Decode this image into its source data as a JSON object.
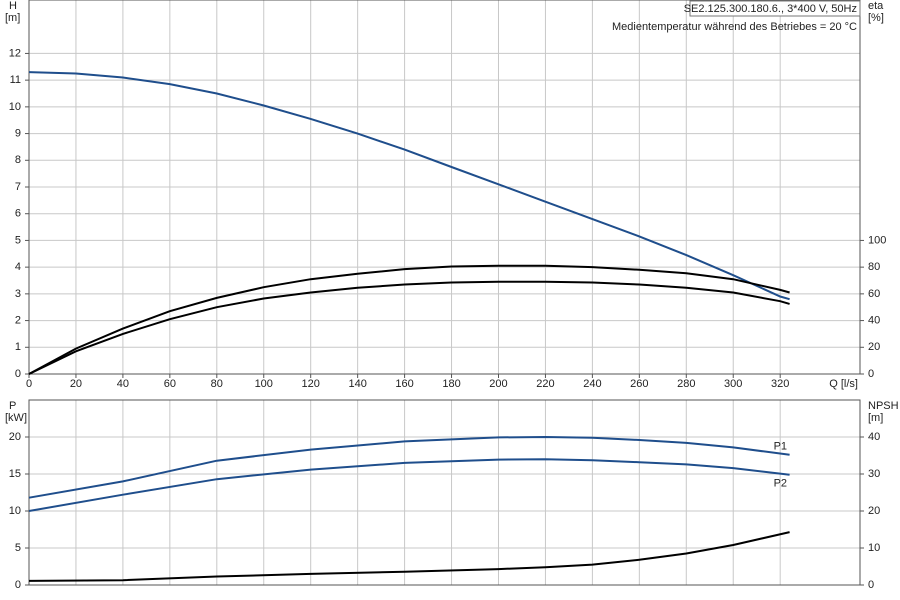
{
  "chart_data": [
    {
      "type": "line",
      "info": [
        "SE2.125.300.180.6., 3*400 V, 50Hz",
        "Medientemperatur während des Betriebes = 20 °C"
      ],
      "y_label": "H",
      "y_unit": "[m]",
      "y2_label": "eta",
      "y2_unit": "[%]",
      "x_label": "Q [l/s]",
      "x": [
        0,
        20,
        40,
        60,
        80,
        100,
        120,
        140,
        160,
        180,
        200,
        220,
        240,
        260,
        280,
        300,
        320,
        324
      ],
      "xlim": [
        0,
        354
      ],
      "xticks": [
        0,
        20,
        40,
        60,
        80,
        100,
        120,
        140,
        160,
        180,
        200,
        220,
        240,
        260,
        280,
        300,
        320
      ],
      "ylim": [
        0,
        14
      ],
      "yticks": [
        0,
        1,
        2,
        3,
        4,
        5,
        6,
        7,
        8,
        9,
        10,
        11,
        12
      ],
      "y2lim": [
        0,
        280
      ],
      "y2ticks": [
        0,
        20,
        40,
        60,
        80,
        100
      ],
      "grid": true,
      "series": [
        {
          "color": "#1f4e8c",
          "values": [
            11.3,
            11.25,
            11.1,
            10.85,
            10.5,
            10.05,
            9.55,
            9.0,
            8.4,
            7.75,
            7.1,
            6.45,
            5.8,
            5.15,
            4.45,
            3.7,
            2.9,
            2.8
          ]
        },
        {
          "color": "#000000",
          "axis": "y2",
          "values": [
            0,
            19,
            34,
            47,
            57,
            65,
            71,
            75,
            78.5,
            80.5,
            81,
            81,
            80,
            78,
            75.5,
            71,
            63,
            61
          ]
        },
        {
          "color": "#000000",
          "axis": "y2",
          "values": [
            0,
            17,
            30,
            41,
            50,
            56.5,
            61,
            64.5,
            67,
            68.5,
            69,
            69,
            68.5,
            67,
            64.5,
            61,
            54.5,
            52.5
          ]
        }
      ]
    },
    {
      "type": "line",
      "y_label": "P",
      "y_unit": "[kW]",
      "y2_label": "NPSH",
      "y2_unit": "[m]",
      "x": [
        0,
        40,
        80,
        120,
        160,
        200,
        220,
        240,
        260,
        280,
        300,
        324
      ],
      "xlim": [
        0,
        354
      ],
      "ylim": [
        0,
        25
      ],
      "yticks": [
        0,
        5,
        10,
        15,
        20
      ],
      "y2lim": [
        0,
        50
      ],
      "y2ticks": [
        0,
        10,
        20,
        30,
        40
      ],
      "grid": true,
      "series": [
        {
          "name": "P1",
          "color": "#1f4e8c",
          "values": [
            11.8,
            14.0,
            16.8,
            18.3,
            19.4,
            19.95,
            20,
            19.9,
            19.6,
            19.2,
            18.6,
            17.6
          ]
        },
        {
          "name": "P2",
          "color": "#1f4e8c",
          "values": [
            10.0,
            12.2,
            14.3,
            15.6,
            16.5,
            16.95,
            17.0,
            16.85,
            16.6,
            16.3,
            15.8,
            14.9
          ]
        },
        {
          "color": "#000000",
          "axis": "y2",
          "values": [
            1.1,
            1.3,
            2.3,
            3.0,
            3.6,
            4.3,
            4.8,
            5.5,
            6.8,
            8.5,
            10.8,
            14.3
          ]
        }
      ]
    }
  ]
}
